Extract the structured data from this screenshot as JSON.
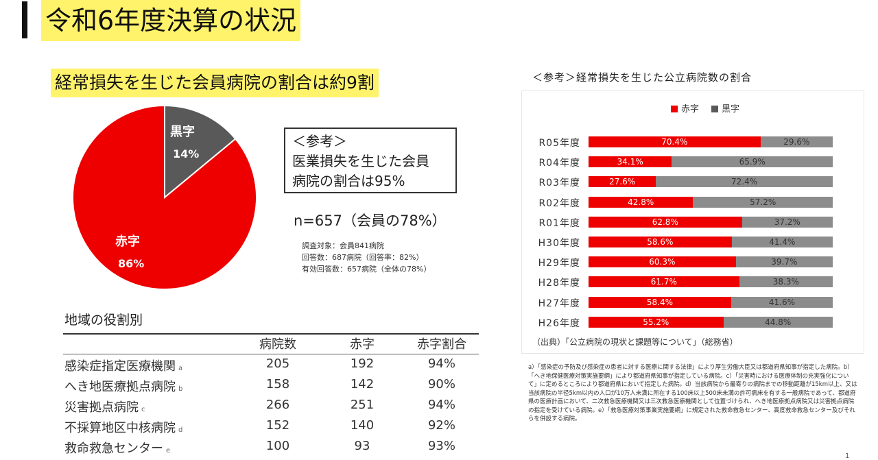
{
  "header": {
    "title": "令和6年度決算の状況",
    "headline": "経常損失を生じた会員病院の割合は約9割"
  },
  "pie": {
    "slices": [
      {
        "label": "黒字",
        "value_label": "14%",
        "value": 14,
        "color": "#595959"
      },
      {
        "label": "赤字",
        "value_label": "86%",
        "value": 86,
        "color": "#ee0000"
      }
    ]
  },
  "reference_box": {
    "line1": "＜参考＞",
    "line2": "医業損失を生じた会員",
    "line3": "病院の割合は95%"
  },
  "sample": {
    "n": "n=657（会員の78%）",
    "note1": "調査対象：会員841病院",
    "note2": "回答数：687病院（回答率：82%）",
    "note3": "有効回答数：657病院（全体の78%）"
  },
  "region_table": {
    "title": "地域の役割別",
    "headers": [
      "病院数",
      "赤字",
      "赤字割合"
    ],
    "rows": [
      {
        "label": "感染症指定医療機関",
        "fn": "a",
        "hospitals": "205",
        "deficit": "192",
        "ratio": "94%"
      },
      {
        "label": "へき地医療拠点病院",
        "fn": "b",
        "hospitals": "158",
        "deficit": "142",
        "ratio": "90%"
      },
      {
        "label": "災害拠点病院",
        "fn": "c",
        "hospitals": "266",
        "deficit": "251",
        "ratio": "94%"
      },
      {
        "label": "不採算地区中核病院",
        "fn": "d",
        "hospitals": "152",
        "deficit": "140",
        "ratio": "92%"
      },
      {
        "label": "救命救急センター",
        "fn": "e",
        "hospitals": "100",
        "deficit": "93",
        "ratio": "93%"
      }
    ]
  },
  "right_panel": {
    "title": "＜参考＞経常損失を生じた公立病院数の割合",
    "source": "（出典）「公立病院の現状と課題等について」（総務省）",
    "footnotes": "a）「感染症の予防及び感染症の患者に対する医療に関する法律」により厚生労働大臣又は都道府県知事が指定した病院。b）「へき地保健医療対策実施要綱」により都道府県知事が指定している病院。c）「災害時における医療体制の充実強化について」に定めるところにより都道府県において指定した病院。d）当該病院から最寄りの病院までの移動距離が15km以上、又は当該病院の半径5km以内の人口が10万人未満に所在する100床以上500床未満の許可病床を有する一般病院であって、都道府県の医療計画において、二次救急医療機関又は三次救急医療機関として位置づけられ、へき地医療拠点病院又は災害拠点病院の指定を受けている病院。e）「救急医療対策事業実施要綱」に規定された救命救急センター、高度救命救急センター及びそれらを併設する病院。",
    "page_number": "1"
  },
  "chart_data": [
    {
      "type": "pie",
      "categories": [
        "黒字",
        "赤字"
      ],
      "values": [
        14,
        86
      ],
      "labels": [
        "14%",
        "86%"
      ],
      "colors": [
        "#595959",
        "#ee0000"
      ]
    },
    {
      "type": "bar",
      "orientation": "horizontal",
      "stacked": true,
      "categories": [
        "R05年度",
        "R04年度",
        "R03年度",
        "R02年度",
        "R01年度",
        "H30年度",
        "H29年度",
        "H28年度",
        "H27年度",
        "H26年度"
      ],
      "series": [
        {
          "name": "赤字",
          "color": "#ee0000",
          "values": [
            70.4,
            34.1,
            27.6,
            42.8,
            62.8,
            58.6,
            60.3,
            61.7,
            58.4,
            55.2
          ],
          "labels": [
            "70.4%",
            "34.1%",
            "27.6%",
            "42.8%",
            "62.8%",
            "58.6%",
            "60.3%",
            "61.7%",
            "58.4%",
            "55.2%"
          ]
        },
        {
          "name": "黒字",
          "color": "#8c8c8c",
          "values": [
            29.6,
            65.9,
            72.4,
            57.2,
            37.2,
            41.4,
            39.7,
            38.3,
            41.6,
            44.8
          ],
          "labels": [
            "29.6%",
            "65.9%",
            "72.4%",
            "57.2%",
            "37.2%",
            "41.4%",
            "39.7%",
            "38.3%",
            "41.6%",
            "44.8%"
          ]
        }
      ],
      "xlim": [
        0,
        100
      ],
      "legend": "top"
    }
  ]
}
